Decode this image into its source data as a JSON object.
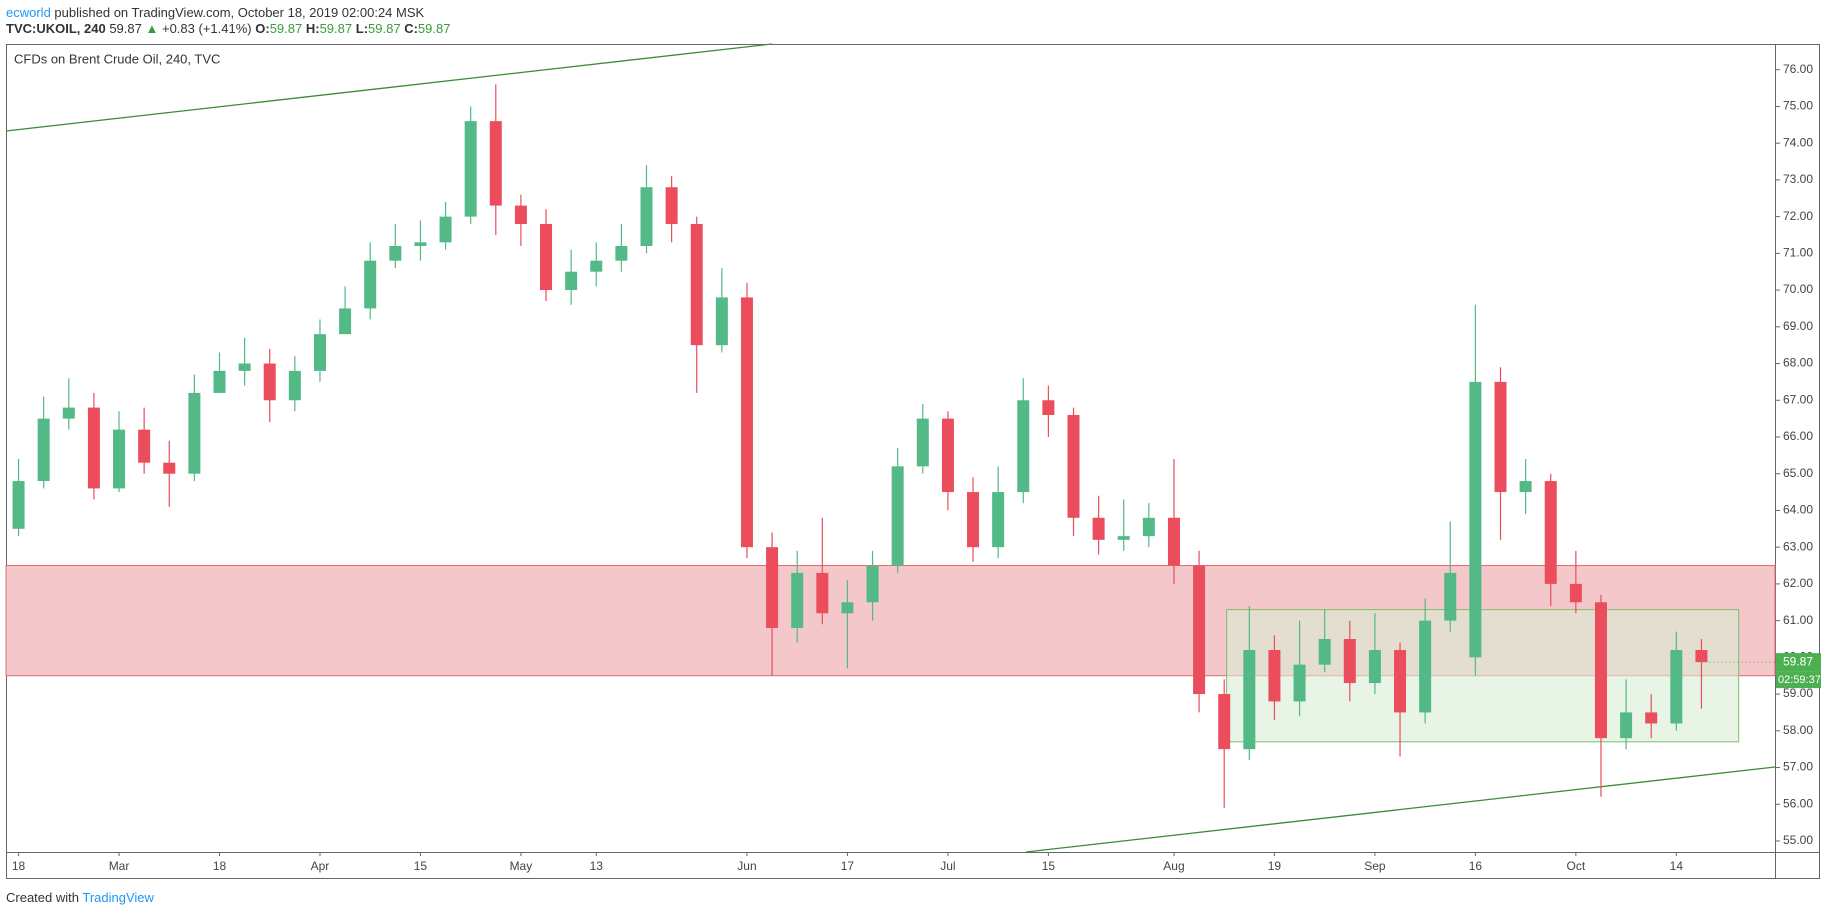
{
  "header": {
    "author": "ecworld",
    "published": "published on TradingView.com, October 18, 2019 02:00:24 MSK",
    "symbol": "TVC:UKOIL, 240",
    "last": "59.87",
    "arrow": "▲",
    "change": "+0.83 (+1.41%)",
    "o_label": "O:",
    "o": "59.87",
    "h_label": "H:",
    "h": "59.87",
    "l_label": "L:",
    "l": "59.87",
    "c_label": "C:",
    "c": "59.87"
  },
  "chart_data": {
    "type": "candlestick",
    "title": "CFDs on Brent Crude Oil, 240, TVC",
    "categories": [
      "18",
      null,
      null,
      null,
      "Mar",
      null,
      null,
      null,
      "18",
      null,
      null,
      null,
      "Apr",
      null,
      null,
      null,
      "15",
      null,
      null,
      null,
      "May",
      null,
      null,
      "13",
      null,
      null,
      null,
      null,
      null,
      "Jun",
      null,
      null,
      null,
      "17",
      null,
      null,
      null,
      "Jul",
      null,
      null,
      null,
      "15",
      null,
      null,
      null,
      null,
      "Aug",
      null,
      null,
      null,
      "19",
      null,
      null,
      null,
      "Sep",
      null,
      null,
      null,
      "16",
      null,
      null,
      null,
      "Oct",
      null,
      null,
      null,
      "14",
      null
    ],
    "open": [
      63.5,
      64.8,
      66.5,
      66.8,
      64.6,
      66.2,
      65.3,
      65.0,
      67.2,
      67.8,
      68.0,
      67.0,
      67.8,
      68.8,
      69.5,
      70.8,
      71.2,
      71.3,
      72.0,
      74.6,
      72.3,
      71.8,
      70.0,
      70.5,
      70.8,
      71.2,
      72.8,
      71.8,
      68.5,
      69.8,
      63.0,
      60.8,
      62.3,
      61.2,
      61.5,
      62.5,
      65.2,
      66.5,
      64.5,
      63.0,
      64.5,
      67.0,
      66.6,
      63.8,
      63.2,
      63.3,
      63.8,
      62.5,
      59.0,
      57.5,
      60.2,
      58.8,
      59.8,
      60.5,
      59.3,
      60.2,
      58.5,
      61.0,
      60.0,
      67.5,
      64.5,
      64.8,
      62.0,
      61.5,
      57.8,
      58.5,
      58.2,
      60.2
    ],
    "high": [
      65.4,
      67.1,
      67.6,
      67.2,
      66.7,
      66.8,
      65.9,
      67.7,
      68.3,
      68.7,
      68.4,
      68.2,
      69.2,
      70.1,
      71.3,
      71.8,
      71.9,
      72.4,
      75.0,
      75.6,
      72.6,
      72.2,
      71.1,
      71.3,
      71.8,
      73.4,
      73.1,
      72.0,
      70.6,
      70.2,
      63.4,
      62.9,
      63.8,
      62.1,
      62.9,
      65.7,
      66.9,
      66.7,
      64.9,
      65.2,
      67.6,
      67.4,
      66.8,
      64.4,
      64.3,
      64.2,
      65.4,
      62.9,
      59.4,
      61.4,
      60.6,
      61.0,
      61.3,
      61.0,
      61.2,
      60.4,
      61.6,
      63.7,
      69.6,
      67.9,
      65.4,
      65.0,
      62.9,
      61.7,
      59.4,
      59.0,
      60.7,
      60.5
    ],
    "low": [
      63.3,
      64.6,
      66.2,
      64.3,
      64.5,
      65.0,
      64.1,
      64.8,
      67.3,
      67.4,
      66.4,
      66.7,
      67.5,
      68.9,
      69.2,
      70.6,
      70.8,
      71.1,
      71.8,
      71.5,
      71.2,
      69.7,
      69.6,
      70.1,
      70.5,
      71.0,
      71.3,
      67.2,
      68.3,
      62.7,
      59.5,
      60.4,
      60.9,
      59.7,
      61.0,
      62.3,
      65.0,
      64.0,
      62.6,
      62.7,
      64.2,
      66.0,
      63.3,
      62.8,
      62.9,
      63.0,
      62.0,
      58.5,
      55.9,
      57.2,
      58.3,
      58.4,
      59.6,
      58.8,
      59.0,
      57.3,
      58.2,
      60.7,
      59.5,
      63.2,
      63.9,
      61.4,
      61.2,
      56.2,
      57.5,
      57.8,
      58.0,
      58.6
    ],
    "close": [
      64.8,
      66.5,
      66.8,
      64.6,
      66.2,
      65.3,
      65.0,
      67.2,
      67.8,
      68.0,
      67.0,
      67.8,
      68.8,
      69.5,
      70.8,
      71.2,
      71.3,
      72.0,
      74.6,
      72.3,
      71.8,
      70.0,
      70.5,
      70.8,
      71.2,
      72.8,
      71.8,
      68.5,
      69.8,
      63.0,
      60.8,
      62.3,
      61.2,
      61.5,
      62.5,
      65.2,
      66.5,
      64.5,
      63.0,
      64.5,
      67.0,
      66.6,
      63.8,
      63.2,
      63.3,
      63.8,
      62.5,
      59.0,
      57.5,
      60.2,
      58.8,
      59.8,
      60.5,
      59.3,
      60.2,
      58.5,
      61.0,
      62.3,
      67.5,
      64.5,
      64.8,
      62.0,
      61.5,
      57.8,
      58.5,
      58.2,
      60.2,
      59.87
    ],
    "up_color": "#53b987",
    "down_color": "#eb4d5c",
    "ylim": [
      54.7,
      76.7
    ],
    "yticks": [
      {
        "value": 55,
        "label": "55.00"
      },
      {
        "value": 56,
        "label": "56.00"
      },
      {
        "value": 57,
        "label": "57.00"
      },
      {
        "value": 58,
        "label": "58.00"
      },
      {
        "value": 59,
        "label": "59.00"
      },
      {
        "value": 60,
        "label": "60.00"
      },
      {
        "value": 61,
        "label": "61.00"
      },
      {
        "value": 62,
        "label": "62.00"
      },
      {
        "value": 63,
        "label": "63.00"
      },
      {
        "value": 64,
        "label": "64.00"
      },
      {
        "value": 65,
        "label": "65.00"
      },
      {
        "value": 66,
        "label": "66.00"
      },
      {
        "value": 67,
        "label": "67.00"
      },
      {
        "value": 68,
        "label": "68.00"
      },
      {
        "value": 69,
        "label": "69.00"
      },
      {
        "value": 70,
        "label": "70.00"
      },
      {
        "value": 71,
        "label": "71.00"
      },
      {
        "value": 72,
        "label": "72.00"
      },
      {
        "value": 73,
        "label": "73.00"
      },
      {
        "value": 74,
        "label": "74.00"
      },
      {
        "value": 75,
        "label": "75.00"
      },
      {
        "value": 76,
        "label": "76.00"
      }
    ],
    "grid": false,
    "countdown": "02:59:37",
    "zones": [
      {
        "ylim": [
          59.5,
          62.5
        ],
        "color": "#f4c7ca",
        "border": "#e06c6c"
      },
      {
        "ylim": [
          57.7,
          61.3
        ],
        "color": "#d8ecd3",
        "border": "#7cbf6c"
      }
    ]
  },
  "footer": {
    "created": "Created with",
    "brand": "TradingView"
  }
}
